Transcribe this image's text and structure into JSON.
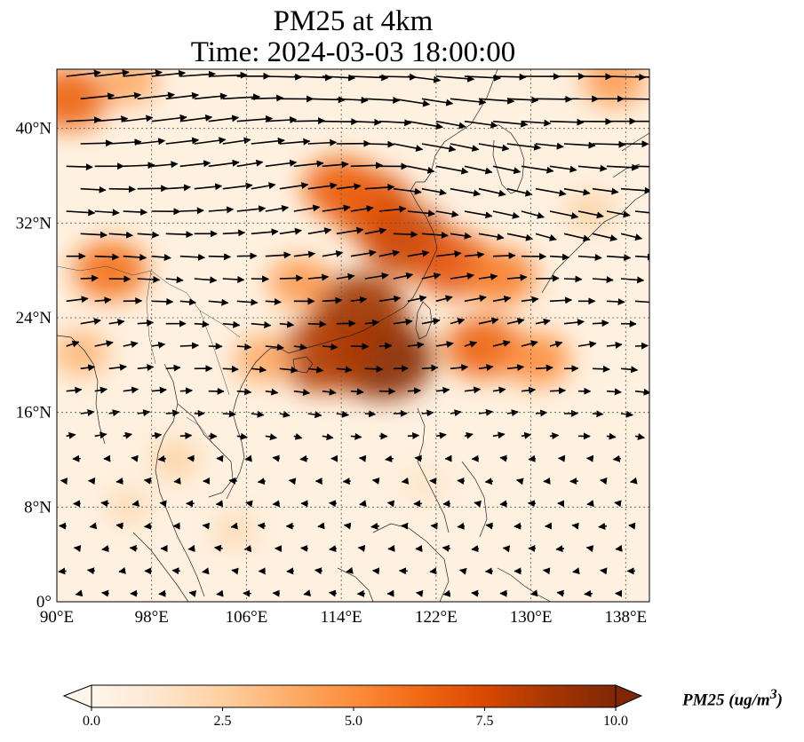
{
  "title": {
    "line1": "PM25 at 4km",
    "line2": "Time: 2024-03-03 18:00:00"
  },
  "map": {
    "lon_range": [
      90,
      140
    ],
    "lat_range": [
      0,
      45
    ],
    "lat_ticks": [
      {
        "value": 40,
        "label": "40°N"
      },
      {
        "value": 32,
        "label": "32°N"
      },
      {
        "value": 24,
        "label": "24°N"
      },
      {
        "value": 16,
        "label": "16°N"
      },
      {
        "value": 8,
        "label": "8°N"
      },
      {
        "value": 0,
        "label": "0°"
      }
    ],
    "lon_ticks": [
      {
        "value": 90,
        "label": "90°E"
      },
      {
        "value": 98,
        "label": "98°E"
      },
      {
        "value": 106,
        "label": "106°E"
      },
      {
        "value": 114,
        "label": "114°E"
      },
      {
        "value": 122,
        "label": "122°E"
      },
      {
        "value": 130,
        "label": "130°E"
      },
      {
        "value": 138,
        "label": "138°E"
      }
    ],
    "gridlines": true
  },
  "colorbar": {
    "label_main": "PM25 (ug/m",
    "label_sup": "3",
    "label_close": ")",
    "min": 0,
    "max": 10,
    "extend": "both",
    "colors": [
      "#fff5eb",
      "#fee6ce",
      "#fdd0a2",
      "#fdae6b",
      "#fd8d3c",
      "#f16913",
      "#d94801",
      "#a63603",
      "#7f2704"
    ],
    "ticks": [
      {
        "value": 0,
        "label": "0.0"
      },
      {
        "value": 2.5,
        "label": "2.5"
      },
      {
        "value": 5,
        "label": "5.0"
      },
      {
        "value": 7.5,
        "label": "7.5"
      },
      {
        "value": 10,
        "label": "10.0"
      }
    ]
  },
  "pm25_plumes": [
    {
      "lon": 117.5,
      "lat": 20.5,
      "value": 9.8
    },
    {
      "lon": 115.5,
      "lat": 24.5,
      "value": 9.0
    },
    {
      "lon": 112.5,
      "lat": 20.8,
      "value": 8.5
    },
    {
      "lon": 119.5,
      "lat": 30.5,
      "value": 8.0
    },
    {
      "lon": 116.5,
      "lat": 33.5,
      "value": 7.5
    },
    {
      "lon": 114.0,
      "lat": 35.0,
      "value": 6.5
    },
    {
      "lon": 123.5,
      "lat": 28.5,
      "value": 7.0
    },
    {
      "lon": 127.5,
      "lat": 27.5,
      "value": 5.5
    },
    {
      "lon": 126.0,
      "lat": 21.5,
      "value": 6.5
    },
    {
      "lon": 130.5,
      "lat": 20.5,
      "value": 5.0
    },
    {
      "lon": 110.5,
      "lat": 27.0,
      "value": 4.5
    },
    {
      "lon": 107.5,
      "lat": 20.5,
      "value": 4.0
    },
    {
      "lon": 94.5,
      "lat": 28.0,
      "value": 6.0
    },
    {
      "lon": 91.0,
      "lat": 42.5,
      "value": 6.5
    },
    {
      "lon": 96.0,
      "lat": 44.0,
      "value": 4.0
    },
    {
      "lon": 137.0,
      "lat": 44.0,
      "value": 4.5
    },
    {
      "lon": 92.0,
      "lat": 21.0,
      "value": 3.5
    },
    {
      "lon": 100.0,
      "lat": 12.0,
      "value": 2.5
    },
    {
      "lon": 105.0,
      "lat": 6.0,
      "value": 2.0
    },
    {
      "lon": 96.0,
      "lat": 8.0,
      "value": 2.0
    },
    {
      "lon": 121.0,
      "lat": 10.0,
      "value": 1.5
    },
    {
      "lon": 135.0,
      "lat": 33.0,
      "value": 2.5
    }
  ],
  "wind_field": {
    "sample_lat_step": 1.9,
    "sample_lon_step": 2.4
  }
}
